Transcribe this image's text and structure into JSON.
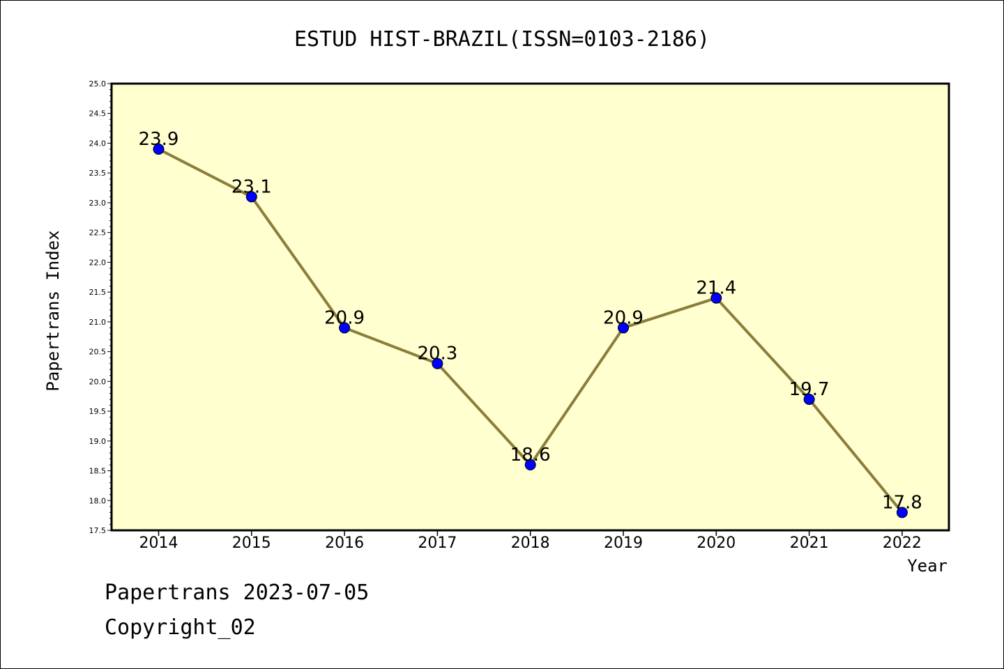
{
  "chart_data": {
    "type": "line",
    "title": "ESTUD HIST-BRAZIL(ISSN=0103-2186)",
    "xlabel": "Year",
    "ylabel": "Papertrans Index",
    "categories": [
      "2014",
      "2015",
      "2016",
      "2017",
      "2018",
      "2019",
      "2020",
      "2021",
      "2022"
    ],
    "series": [
      {
        "values": [
          23.9,
          23.1,
          20.9,
          20.3,
          18.6,
          20.9,
          21.4,
          19.7,
          17.8
        ],
        "data_labels": [
          "23.9",
          "23.1",
          "20.9",
          "20.3",
          "18.6",
          "20.9",
          "21.4",
          "19.7",
          "17.8"
        ]
      }
    ],
    "ylim": [
      17.5,
      25.0
    ],
    "yticks": [
      "17.5",
      "18.0",
      "18.5",
      "19.0",
      "19.5",
      "20.0",
      "20.5",
      "21.0",
      "21.5",
      "22.0",
      "22.5",
      "23.0",
      "23.5",
      "24.0",
      "24.5",
      "25.0"
    ],
    "grid": false,
    "legend": "none",
    "colors": {
      "plot_background": "#ffffd0",
      "line": "#8b7d3a",
      "marker": "#0000ff"
    }
  },
  "footer": {
    "line1": "Papertrans 2023-07-05",
    "line2": "Copyright_02"
  }
}
